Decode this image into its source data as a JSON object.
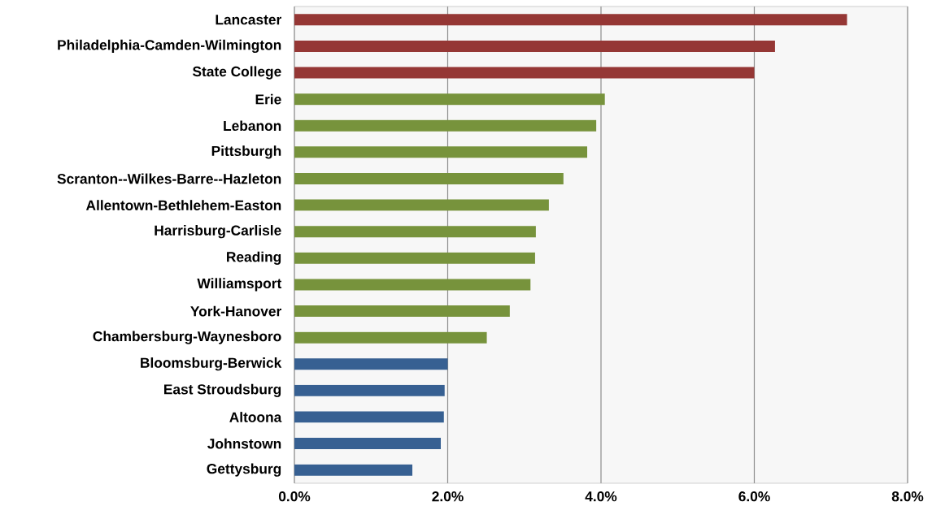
{
  "chart_data": {
    "type": "bar",
    "orientation": "horizontal",
    "categories": [
      "Lancaster",
      "Philadelphia-Camden-Wilmington",
      "State College",
      "Erie",
      "Lebanon",
      "Pittsburgh",
      "Scranton--Wilkes-Barre--Hazleton",
      "Allentown-Bethlehem-Easton",
      "Harrisburg-Carlisle",
      "Reading",
      "Williamsport",
      "York-Hanover",
      "Chambersburg-Waynesboro",
      "Bloomsburg-Berwick",
      "East Stroudsburg",
      "Altoona",
      "Johnstown",
      "Gettysburg"
    ],
    "values": [
      7.21,
      6.27,
      6.0,
      4.05,
      3.94,
      3.82,
      3.51,
      3.32,
      3.15,
      3.14,
      3.08,
      2.81,
      2.51,
      2.0,
      1.96,
      1.95,
      1.91,
      1.54
    ],
    "colors": [
      "#953735",
      "#953735",
      "#953735",
      "#77933c",
      "#77933c",
      "#77933c",
      "#77933c",
      "#77933c",
      "#77933c",
      "#77933c",
      "#77933c",
      "#77933c",
      "#77933c",
      "#376092",
      "#376092",
      "#376092",
      "#376092",
      "#376092"
    ],
    "xlim": [
      0,
      8
    ],
    "xticks": [
      {
        "value": 0,
        "label": "0.0%"
      },
      {
        "value": 2,
        "label": "2.0%"
      },
      {
        "value": 4,
        "label": "4.0%"
      },
      {
        "value": 6,
        "label": "6.0%"
      },
      {
        "value": 8,
        "label": "8.0%"
      }
    ],
    "grid": "x"
  }
}
